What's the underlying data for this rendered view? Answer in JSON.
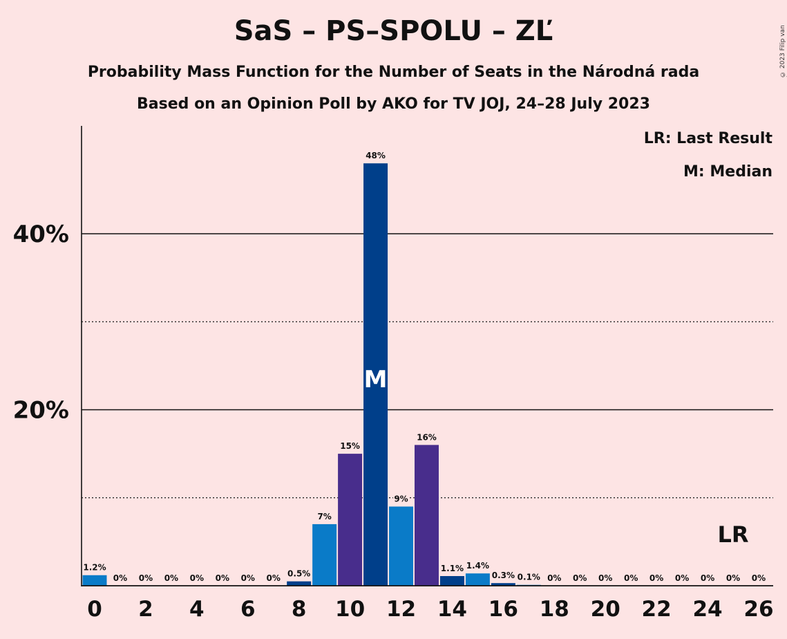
{
  "header": {
    "title": "SaS – PS–SPOLU – ZĽ",
    "subtitle1": "Probability Mass Function for the Number of Seats in the Národná rada",
    "subtitle2": "Based on an Opinion Poll by AKO for TV JOJ, 24–28 July 2023",
    "copyright": "© 2023 Filip van Laenen"
  },
  "legend": {
    "last_result": "LR: Last Result",
    "median": "M: Median"
  },
  "colors": {
    "background": "#fde4e4",
    "light_blue": "#0a7bc8",
    "dark_blue": "#003f8a",
    "purple": "#482d8c"
  },
  "chart_data": {
    "type": "bar",
    "categories": [
      0,
      1,
      2,
      3,
      4,
      5,
      6,
      7,
      8,
      9,
      10,
      11,
      12,
      13,
      14,
      15,
      16,
      17,
      18,
      19,
      20,
      21,
      22,
      23,
      24,
      25,
      26
    ],
    "values": [
      1.2,
      0,
      0,
      0,
      0,
      0,
      0,
      0,
      0.5,
      7,
      15,
      48,
      9,
      16,
      1.1,
      1.4,
      0.3,
      0.1,
      0,
      0,
      0,
      0,
      0,
      0,
      0,
      0,
      0
    ],
    "labels": [
      "1.2%",
      "0%",
      "0%",
      "0%",
      "0%",
      "0%",
      "0%",
      "0%",
      "0.5%",
      "7%",
      "15%",
      "48%",
      "9%",
      "16%",
      "1.1%",
      "1.4%",
      "0.3%",
      "0.1%",
      "0%",
      "0%",
      "0%",
      "0%",
      "0%",
      "0%",
      "0%",
      "0%",
      "0%"
    ],
    "bar_colors": [
      "light_blue",
      "light_blue",
      "light_blue",
      "light_blue",
      "light_blue",
      "light_blue",
      "light_blue",
      "light_blue",
      "dark_blue",
      "light_blue",
      "purple",
      "dark_blue",
      "light_blue",
      "purple",
      "dark_blue",
      "light_blue",
      "dark_blue",
      "light_blue",
      "light_blue",
      "light_blue",
      "light_blue",
      "light_blue",
      "light_blue",
      "light_blue",
      "light_blue",
      "light_blue",
      "light_blue"
    ],
    "x_tick_labels": [
      "0",
      "2",
      "4",
      "6",
      "8",
      "10",
      "12",
      "14",
      "16",
      "18",
      "20",
      "22",
      "24",
      "26"
    ],
    "y_tick_labels": [
      "20%",
      "40%"
    ],
    "y_major_ticks": [
      20,
      40
    ],
    "y_minor_ticks": [
      10,
      30
    ],
    "ylim": [
      0,
      52
    ],
    "median_seat": 11,
    "median_marker": "M",
    "last_result_seat": 25,
    "last_result_marker": "LR"
  }
}
